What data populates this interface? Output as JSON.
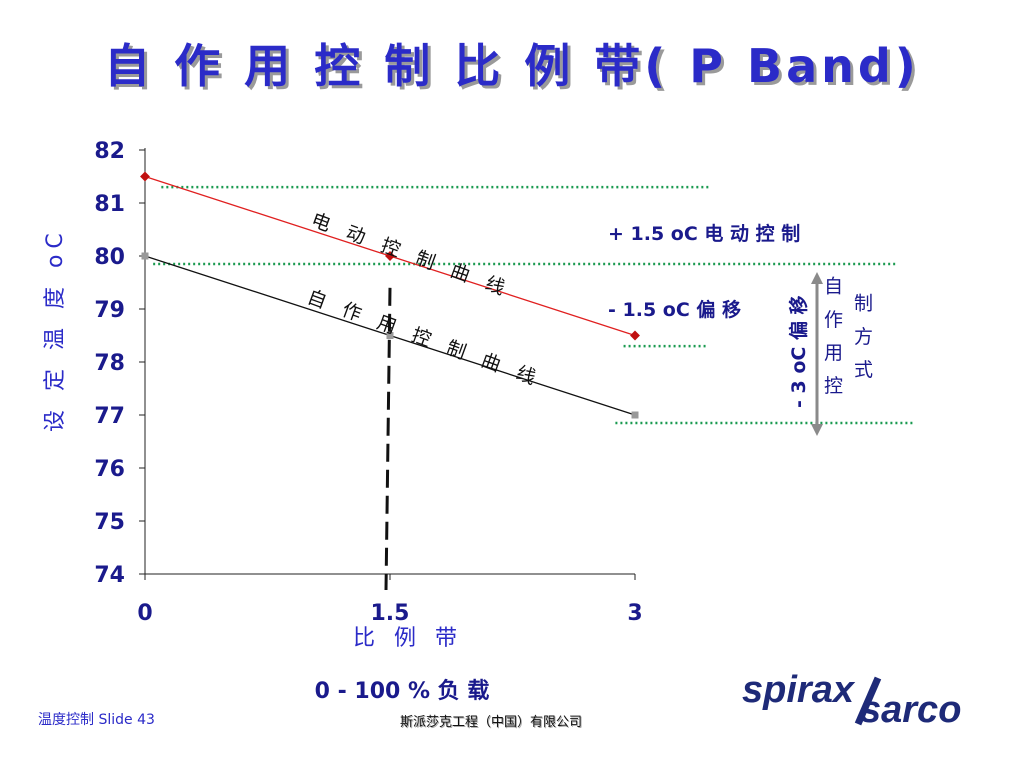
{
  "slide": {
    "title": "自 作 用 控 制 比 例 带( P Band)",
    "footer_left": "温度控制 Slide   43",
    "footer_center": "斯派莎克工程（中国）有限公司",
    "logo": {
      "line1": "spirax",
      "line2": "sarco",
      "color": "#1e2a78"
    }
  },
  "chart_data": {
    "type": "line",
    "title": "",
    "ylabel": "设 定 温 度 oC",
    "xlabel": "比 例 带",
    "xlabel2": "0 - 100 % 负 载",
    "x_ticks": [
      "0",
      "1.5",
      "3"
    ],
    "y_ticks": [
      "74",
      "75",
      "76",
      "77",
      "78",
      "79",
      "80",
      "81",
      "82"
    ],
    "xlim": [
      0,
      3
    ],
    "ylim": [
      74,
      82
    ],
    "series": [
      {
        "name": "电 动 控 制 曲 线",
        "color": "#e02020",
        "marker_color": "#c01010",
        "points": [
          [
            0,
            81.5
          ],
          [
            1.5,
            80
          ],
          [
            3,
            78.5
          ]
        ]
      },
      {
        "name": "自 作 用 控 制 曲 线",
        "color": "#111111",
        "marker_color": "#999999",
        "points": [
          [
            0,
            80
          ],
          [
            1.5,
            78.5
          ],
          [
            3,
            77
          ]
        ]
      }
    ],
    "reference_lines": [
      {
        "y": 81.3,
        "x_from": 0.1,
        "x_to": 3.45
      },
      {
        "y": 79.85,
        "x_from": 0.05,
        "x_to": 4.6
      },
      {
        "y": 78.3,
        "x_from": 2.93,
        "x_to": 3.45
      },
      {
        "y": 76.85,
        "x_from": 2.88,
        "x_to": 4.7
      }
    ],
    "vertical_marker_x": 1.5,
    "annotations": {
      "plus": "+ 1.5 oC 电 动 控 制",
      "minus": "- 1.5 oC  偏 移",
      "shift_vertical": "- 3 oC 偏 移",
      "mode_col1": "自 作 用 控",
      "mode_col2": "制 方 式"
    }
  }
}
